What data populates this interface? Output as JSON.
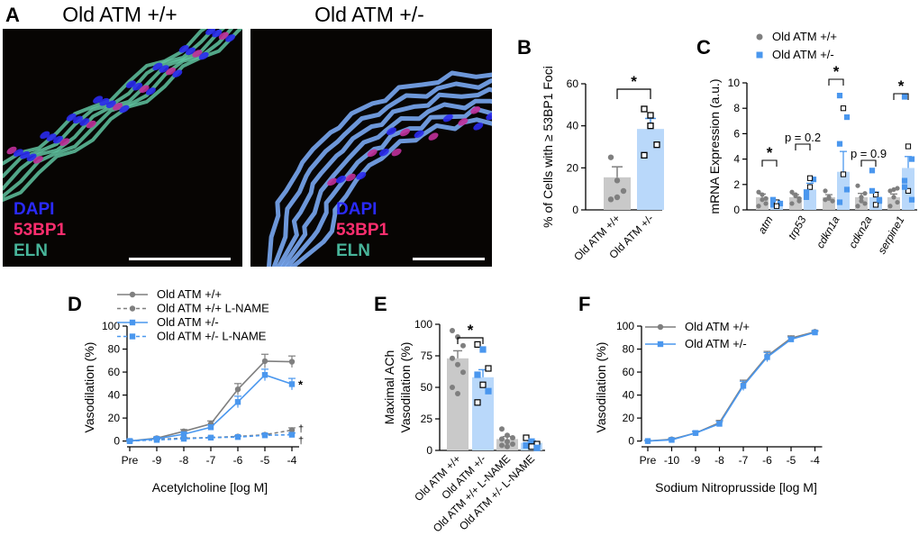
{
  "panels": {
    "A": "A",
    "B": "B",
    "C": "C",
    "D": "D",
    "E": "E",
    "F": "F"
  },
  "panel_a": {
    "images": [
      {
        "title": "Old ATM +/+",
        "stains": [
          "DAPI",
          "53BP1",
          "ELN"
        ]
      },
      {
        "title": "Old ATM +/-",
        "stains": [
          "DAPI",
          "53BP1",
          "ELN"
        ]
      }
    ],
    "stain_colors": {
      "DAPI": "#2a2aff",
      "53BP1": "#ff2e6e",
      "ELN": "#48b59a"
    },
    "image_tints": [
      "#5fc3a0",
      "#7fb2ff"
    ]
  },
  "colors": {
    "control": "#7f7f7f",
    "control_light": "#c9c9c9",
    "het": "#4a97ee",
    "het_light": "#b9d8fa"
  },
  "chart_data": [
    {
      "panel": "B",
      "type": "bar",
      "ylabel": "% of Cells with ≥ 53BP1 Foci",
      "ylim": [
        0,
        60
      ],
      "yticks": [
        0,
        20,
        40,
        60
      ],
      "categories": [
        "Old ATM +/+",
        "Old ATM +/-"
      ],
      "values": [
        15.5,
        38.5
      ],
      "sem": [
        5,
        5
      ],
      "points": [
        [
          25,
          14,
          9,
          5,
          6
        ],
        [
          48,
          40,
          31,
          26,
          45
        ]
      ],
      "significance": [
        "*"
      ]
    },
    {
      "panel": "C",
      "type": "bar",
      "ylabel": "mRNA Expression (a.u.)",
      "ylim": [
        0,
        10
      ],
      "yticks": [
        0,
        2,
        4,
        6,
        8,
        10
      ],
      "categories": [
        "atm",
        "trp53",
        "cdkn1a",
        "cdkn2a",
        "serpine1"
      ],
      "series": [
        {
          "name": "Old ATM +/+",
          "values": [
            1.0,
            1.0,
            1.0,
            1.0,
            1.0
          ],
          "sem": [
            0.25,
            0.2,
            0.2,
            0.3,
            0.25
          ],
          "points": [
            [
              1.4,
              0.8,
              0.5,
              0.3,
              1.2,
              0.9
            ],
            [
              1.4,
              1.1,
              0.7,
              0.5,
              1.2,
              0.9
            ],
            [
              1.5,
              1.0,
              0.7,
              0.8,
              0.9
            ],
            [
              1.9,
              0.7,
              0.5,
              0.3,
              1.0,
              1.3
            ],
            [
              1.5,
              1.0,
              0.6,
              0.3,
              1.6,
              1.7
            ]
          ]
        },
        {
          "name": "Old ATM +/-",
          "values": [
            0.6,
            1.6,
            3.0,
            1.0,
            3.3
          ],
          "sem": [
            0.15,
            0.5,
            1.6,
            0.4,
            0.9
          ],
          "points": [
            [
              0.4,
              0.6,
              0.5,
              0.8,
              0.3
            ],
            [
              1.0,
              1.8,
              2.4,
              1.4,
              2.5
            ],
            [
              9.0,
              8.0,
              7.3,
              5.2,
              2.8,
              1.6,
              0.6
            ],
            [
              3.1,
              1.2,
              0.7,
              1.5,
              0.4,
              0.8
            ],
            [
              8.9,
              5.0,
              4.0,
              2.3,
              1.5,
              0.8,
              1.8
            ]
          ]
        }
      ],
      "legend_position": "top",
      "annotations": [
        "*",
        "p = 0.2",
        "*",
        "p = 0.9",
        "*"
      ]
    },
    {
      "panel": "D",
      "type": "line",
      "xlabel": "Acetylcholine [log M]",
      "ylabel": "Vasodilation (%)",
      "x": [
        "Pre",
        "-9",
        "-8",
        "-7",
        "-6",
        "-5",
        "-4"
      ],
      "ylim": [
        -5,
        100
      ],
      "yticks": [
        0,
        20,
        40,
        60,
        80,
        100
      ],
      "series": [
        {
          "name": "Old ATM +/+",
          "values": [
            0,
            2.5,
            8.5,
            15,
            45,
            69.5,
            69
          ],
          "sem": [
            1,
            1,
            1.5,
            2.5,
            5,
            6,
            5
          ]
        },
        {
          "name": "Old ATM +/+ L-NAME",
          "values": [
            0,
            1.5,
            2.5,
            3,
            4,
            5.5,
            9.5
          ],
          "sem": [
            0.5,
            0.5,
            0.5,
            0.5,
            0.5,
            1,
            2
          ]
        },
        {
          "name": "Old ATM +/-",
          "values": [
            0,
            2,
            6,
            12,
            34,
            57.5,
            49.5
          ],
          "sem": [
            1,
            1,
            1.5,
            2,
            5,
            5,
            5
          ]
        },
        {
          "name": "Old ATM +/-  L-NAME",
          "values": [
            0,
            1,
            2,
            3,
            3.5,
            5,
            5.5
          ],
          "sem": [
            0.5,
            0.5,
            0.5,
            0.5,
            0.5,
            1,
            1.5
          ]
        }
      ],
      "legend_position": "top-left",
      "annotations": [
        "*",
        "†",
        "†"
      ]
    },
    {
      "panel": "E",
      "type": "bar",
      "ylabel": "Maximal ACh Vasodilation (%)",
      "ylim": [
        0,
        100
      ],
      "yticks": [
        0,
        25,
        50,
        75,
        100
      ],
      "categories": [
        "Old ATM +/+",
        "Old ATM +/-",
        "Old ATM +/+ L-NAME",
        "Old ATM +/- L-NAME"
      ],
      "values": [
        73,
        58,
        9,
        6
      ],
      "sem": [
        6,
        6,
        2,
        1.5
      ],
      "points": [
        [
          95,
          90,
          83,
          73,
          68,
          62,
          50,
          45
        ],
        [
          84,
          80,
          65,
          60,
          52,
          47,
          38
        ],
        [
          17,
          12,
          10,
          9,
          7,
          5,
          4,
          3
        ],
        [
          10,
          7,
          5,
          4,
          3,
          2
        ]
      ],
      "significance": [
        "*"
      ]
    },
    {
      "panel": "F",
      "type": "line",
      "xlabel": "Sodium Nitroprusside [log M]",
      "ylabel": "Vasodilation (%)",
      "x": [
        "Pre",
        "-10",
        "-9",
        "-8",
        "-7",
        "-6",
        "-5",
        "-4"
      ],
      "ylim": [
        -5,
        100
      ],
      "yticks": [
        0,
        20,
        40,
        60,
        80,
        100
      ],
      "series": [
        {
          "name": "Old ATM +/+",
          "values": [
            0,
            1.5,
            7,
            16,
            49,
            74,
            89.5,
            95
          ],
          "sem": [
            0.5,
            1,
            1.5,
            2,
            4,
            4,
            2,
            1
          ]
        },
        {
          "name": "Old ATM +/-",
          "values": [
            0,
            1,
            7,
            15,
            48,
            73,
            88.5,
            94.5
          ],
          "sem": [
            0.5,
            1,
            1.5,
            2,
            4,
            4,
            2,
            1
          ]
        }
      ],
      "legend_position": "top-left"
    }
  ]
}
